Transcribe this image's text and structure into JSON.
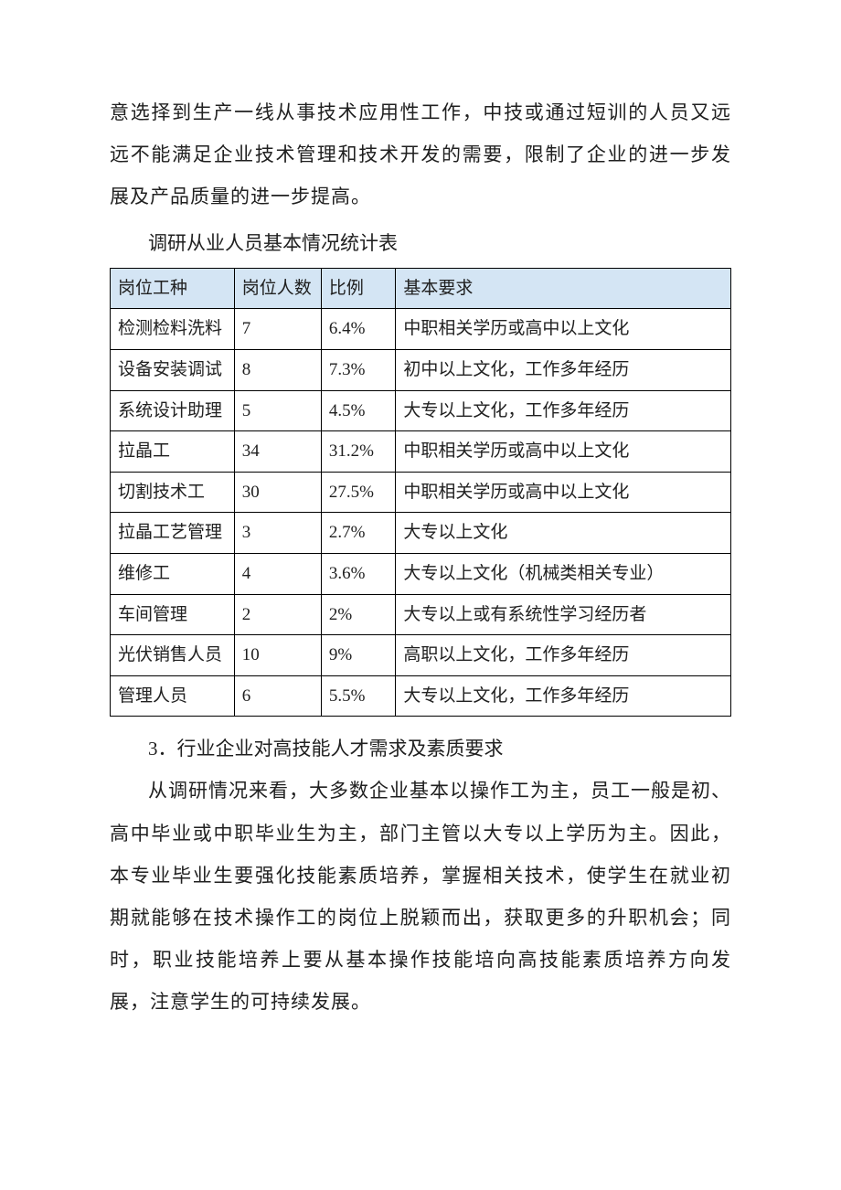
{
  "para1": "意选择到生产一线从事技术应用性工作，中技或通过短训的人员又远远不能满足企业技术管理和技术开发的需要，限制了企业的进一步发展及产品质量的进一步提高。",
  "table_caption": "调研从业人员基本情况统计表",
  "table": {
    "columns": [
      "岗位工种",
      "岗位人数",
      "比例",
      "基本要求"
    ],
    "rows": [
      [
        "检测检料洗料",
        "7",
        "6.4%",
        "中职相关学历或高中以上文化"
      ],
      [
        "设备安装调试",
        "8",
        "7.3%",
        "初中以上文化，工作多年经历"
      ],
      [
        "系统设计助理",
        "5",
        "4.5%",
        "大专以上文化，工作多年经历"
      ],
      [
        "拉晶工",
        "34",
        "31.2%",
        "中职相关学历或高中以上文化"
      ],
      [
        "切割技术工",
        "30",
        "27.5%",
        "中职相关学历或高中以上文化"
      ],
      [
        "拉晶工艺管理",
        "3",
        "2.7%",
        "大专以上文化"
      ],
      [
        "维修工",
        "4",
        "3.6%",
        "大专以上文化（机械类相关专业）"
      ],
      [
        "车间管理",
        "2",
        "2%",
        "大专以上或有系统性学习经历者"
      ],
      [
        "光伏销售人员",
        "10",
        "9%",
        "高职以上文化，工作多年经历"
      ],
      [
        "管理人员",
        "6",
        "5.5%",
        "大专以上文化，工作多年经历"
      ]
    ],
    "header_bg": "#d4e5f4",
    "border_color": "#000000",
    "font_size": 19,
    "col_widths": [
      "20%",
      "14%",
      "12%",
      "54%"
    ]
  },
  "section_heading": "3．行业企业对高技能人才需求及素质要求",
  "para2": "从调研情况来看，大多数企业基本以操作工为主，员工一般是初、高中毕业或中职毕业生为主，部门主管以大专以上学历为主。因此，本专业毕业生要强化技能素质培养，掌握相关技术，使学生在就业初期就能够在技术操作工的岗位上脱颖而出，获取更多的升职机会；同时，职业技能培养上要从基本操作技能培向高技能素质培养方向发展，注意学生的可持续发展。",
  "colors": {
    "text": "#202020",
    "background": "#ffffff"
  },
  "typography": {
    "body_font_size": 21,
    "table_font_size": 19,
    "line_height": 2.2
  }
}
